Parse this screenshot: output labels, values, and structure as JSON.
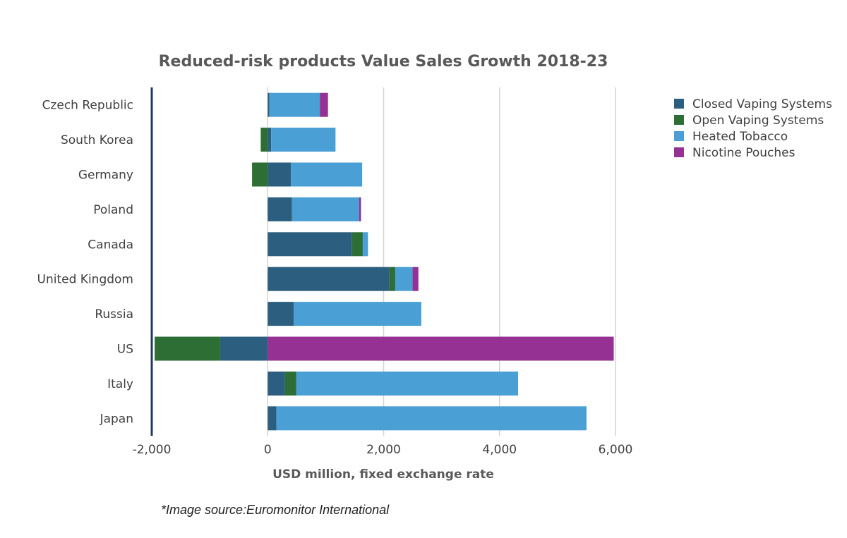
{
  "chart_data": {
    "type": "bar",
    "orientation": "horizontal",
    "stacked": true,
    "title": "Reduced-risk products Value Sales Growth 2018-23",
    "xlabel": "USD million, fixed exchange rate",
    "ylabel": "",
    "xlim": [
      -2000,
      6000
    ],
    "x_ticks": [
      -2000,
      0,
      2000,
      4000,
      6000
    ],
    "x_tick_labels": [
      "-2,000",
      "0",
      "2,000",
      "4,000",
      "6,000"
    ],
    "grid": "vertical",
    "legend_position": "right",
    "categories": [
      "Czech Republic",
      "South Korea",
      "Germany",
      "Poland",
      "Canada",
      "United Kingdom",
      "Russia",
      "US",
      "Italy",
      "Japan"
    ],
    "series": [
      {
        "name": "Closed Vaping Systems",
        "color": "#2c5f7f",
        "values": [
          30,
          60,
          400,
          420,
          1450,
          2100,
          450,
          -820,
          300,
          150
        ]
      },
      {
        "name": "Open Vaping Systems",
        "color": "#2d6e35",
        "values": [
          0,
          -120,
          -270,
          0,
          190,
          100,
          0,
          -1130,
          190,
          0
        ]
      },
      {
        "name": "Heated Tobacco",
        "color": "#4a9fd4",
        "values": [
          870,
          1110,
          1230,
          1160,
          90,
          300,
          2200,
          0,
          3830,
          5350
        ]
      },
      {
        "name": "Nicotine Pouches",
        "color": "#943192",
        "values": [
          140,
          0,
          0,
          30,
          0,
          100,
          0,
          5970,
          0,
          0
        ]
      }
    ],
    "source_note": "*Image source:Euromonitor International"
  }
}
